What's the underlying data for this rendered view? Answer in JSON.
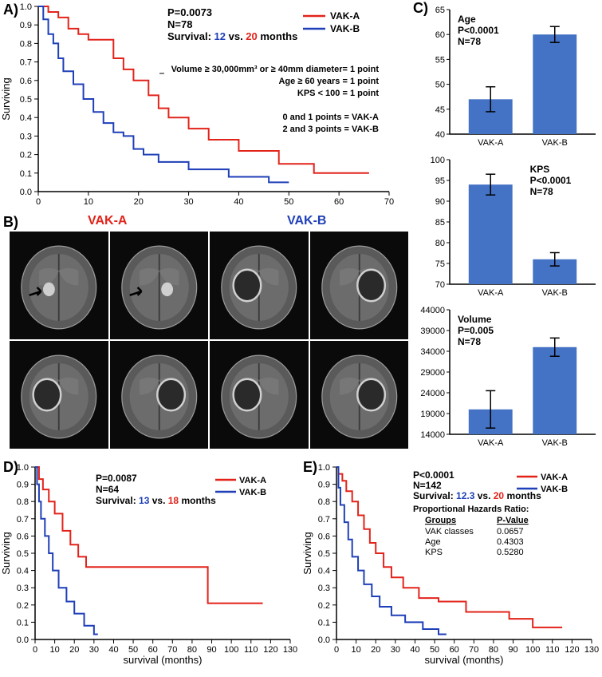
{
  "colors": {
    "vak_a": "#e2231a",
    "vak_b": "#1f3fb8",
    "bar": "#4472c4",
    "black": "#000000",
    "white": "#ffffff",
    "brain_gray": "#7a7a7a"
  },
  "panelA": {
    "label": "A)",
    "x_range": [
      0,
      70
    ],
    "x_ticks": [
      0,
      10,
      20,
      30,
      40,
      50,
      60,
      70
    ],
    "y_range": [
      0,
      1.0
    ],
    "y_ticks": [
      0,
      0.1,
      0.2,
      0.3,
      0.4,
      0.5,
      0.6,
      0.7,
      0.8,
      0.9,
      1.0
    ],
    "y_title": "Surviving",
    "p_text": "P=0.0073",
    "n_text": "N=78",
    "surv_prefix": "Survival: ",
    "surv_b": "12",
    "surv_mid": " vs. ",
    "surv_a": "20",
    "surv_suffix": " months",
    "legend": [
      "VAK-A",
      "VAK-B"
    ],
    "rules": [
      "Volume ≥ 30,000mm³ or ≥ 40mm diameter= 1 point",
      "Age ≥ 60 years = 1 point",
      "KPS < 100 = 1 point",
      "",
      "0 and 1 points = VAK-A",
      "2 and 3 points = VAK-B"
    ],
    "km_a": [
      [
        0,
        1.0
      ],
      [
        2,
        1.0
      ],
      [
        2,
        0.97
      ],
      [
        4,
        0.97
      ],
      [
        4,
        0.94
      ],
      [
        6,
        0.94
      ],
      [
        6,
        0.88
      ],
      [
        8,
        0.88
      ],
      [
        8,
        0.85
      ],
      [
        10,
        0.85
      ],
      [
        10,
        0.82
      ],
      [
        15,
        0.82
      ],
      [
        15,
        0.72
      ],
      [
        17,
        0.72
      ],
      [
        17,
        0.66
      ],
      [
        19,
        0.66
      ],
      [
        19,
        0.6
      ],
      [
        22,
        0.6
      ],
      [
        22,
        0.52
      ],
      [
        24,
        0.52
      ],
      [
        24,
        0.45
      ],
      [
        26,
        0.45
      ],
      [
        26,
        0.4
      ],
      [
        30,
        0.4
      ],
      [
        30,
        0.34
      ],
      [
        34,
        0.34
      ],
      [
        34,
        0.28
      ],
      [
        40,
        0.28
      ],
      [
        40,
        0.22
      ],
      [
        48,
        0.22
      ],
      [
        48,
        0.15
      ],
      [
        55,
        0.15
      ],
      [
        55,
        0.1
      ],
      [
        66,
        0.1
      ]
    ],
    "km_b": [
      [
        0,
        1.0
      ],
      [
        1,
        1.0
      ],
      [
        1,
        0.93
      ],
      [
        2,
        0.93
      ],
      [
        2,
        0.85
      ],
      [
        3,
        0.85
      ],
      [
        3,
        0.8
      ],
      [
        4,
        0.8
      ],
      [
        4,
        0.72
      ],
      [
        5,
        0.72
      ],
      [
        5,
        0.65
      ],
      [
        7,
        0.65
      ],
      [
        7,
        0.58
      ],
      [
        9,
        0.58
      ],
      [
        9,
        0.5
      ],
      [
        11,
        0.5
      ],
      [
        11,
        0.43
      ],
      [
        13,
        0.43
      ],
      [
        13,
        0.37
      ],
      [
        15,
        0.37
      ],
      [
        15,
        0.32
      ],
      [
        17,
        0.32
      ],
      [
        17,
        0.3
      ],
      [
        19,
        0.3
      ],
      [
        19,
        0.23
      ],
      [
        21,
        0.23
      ],
      [
        21,
        0.2
      ],
      [
        24,
        0.2
      ],
      [
        24,
        0.16
      ],
      [
        30,
        0.16
      ],
      [
        30,
        0.12
      ],
      [
        38,
        0.12
      ],
      [
        38,
        0.08
      ],
      [
        46,
        0.08
      ],
      [
        46,
        0.05
      ],
      [
        50,
        0.05
      ]
    ]
  },
  "panelB": {
    "label": "B)",
    "title_a": "VAK-A",
    "title_b": "VAK-B"
  },
  "panelC": {
    "label": "C)",
    "categories": [
      "VAK-A",
      "VAK-B"
    ],
    "charts": [
      {
        "title": "Age",
        "p": "P<0.0001",
        "n": "N=78",
        "ylim": [
          40,
          65
        ],
        "yticks": [
          40,
          45,
          50,
          55,
          60,
          65
        ],
        "values": [
          47,
          60
        ],
        "err": [
          2.5,
          1.6
        ],
        "title_pos": "left"
      },
      {
        "title": "KPS",
        "p": "P<0.0001",
        "n": "N=78",
        "ylim": [
          70,
          100
        ],
        "yticks": [
          70,
          75,
          80,
          85,
          90,
          95,
          100
        ],
        "values": [
          94,
          76
        ],
        "err": [
          2.5,
          1.6
        ],
        "title_pos": "right"
      },
      {
        "title": "Volume",
        "p": "P=0.005",
        "n": "N=78",
        "ylim": [
          14000,
          44000
        ],
        "yticks": [
          14000,
          19000,
          24000,
          29000,
          34000,
          39000,
          44000
        ],
        "values": [
          20000,
          35000
        ],
        "err": [
          4500,
          2200
        ],
        "title_pos": "left"
      }
    ]
  },
  "panelD": {
    "label": "D)",
    "x_range": [
      0,
      130
    ],
    "x_ticks": [
      0,
      10,
      20,
      30,
      40,
      50,
      60,
      70,
      80,
      90,
      100,
      110,
      120,
      130
    ],
    "y_range": [
      0,
      1.0
    ],
    "y_ticks": [
      0,
      0.1,
      0.2,
      0.3,
      0.4,
      0.5,
      0.6,
      0.7,
      0.8,
      0.9,
      1.0
    ],
    "y_title": "Surviving",
    "x_title": "survival (months)",
    "p_text": "P=0.0087",
    "n_text": "N=64",
    "surv_prefix": "Survival: ",
    "surv_b": "13",
    "surv_mid": " vs. ",
    "surv_a": "18",
    "surv_suffix": " months",
    "legend": [
      "VAK-A",
      "VAK-B"
    ],
    "km_a": [
      [
        0,
        1.0
      ],
      [
        2,
        1.0
      ],
      [
        2,
        0.93
      ],
      [
        4,
        0.93
      ],
      [
        4,
        0.87
      ],
      [
        7,
        0.87
      ],
      [
        7,
        0.8
      ],
      [
        10,
        0.8
      ],
      [
        10,
        0.73
      ],
      [
        14,
        0.73
      ],
      [
        14,
        0.63
      ],
      [
        18,
        0.63
      ],
      [
        18,
        0.55
      ],
      [
        22,
        0.55
      ],
      [
        22,
        0.48
      ],
      [
        26,
        0.48
      ],
      [
        26,
        0.42
      ],
      [
        88,
        0.42
      ],
      [
        88,
        0.21
      ],
      [
        116,
        0.21
      ]
    ],
    "km_b": [
      [
        0,
        1.0
      ],
      [
        1,
        1.0
      ],
      [
        1,
        0.9
      ],
      [
        2,
        0.9
      ],
      [
        2,
        0.8
      ],
      [
        3,
        0.8
      ],
      [
        3,
        0.7
      ],
      [
        5,
        0.7
      ],
      [
        5,
        0.6
      ],
      [
        7,
        0.6
      ],
      [
        7,
        0.5
      ],
      [
        9,
        0.5
      ],
      [
        9,
        0.4
      ],
      [
        12,
        0.4
      ],
      [
        12,
        0.3
      ],
      [
        16,
        0.3
      ],
      [
        16,
        0.22
      ],
      [
        20,
        0.22
      ],
      [
        20,
        0.15
      ],
      [
        25,
        0.15
      ],
      [
        25,
        0.08
      ],
      [
        30,
        0.08
      ],
      [
        30,
        0.03
      ],
      [
        32,
        0.03
      ]
    ]
  },
  "panelE": {
    "label": "E)",
    "x_range": [
      0,
      130
    ],
    "x_ticks": [
      0,
      10,
      20,
      30,
      40,
      50,
      60,
      70,
      80,
      90,
      100,
      110,
      120,
      130
    ],
    "y_range": [
      0,
      1.0
    ],
    "y_ticks": [
      0,
      0.1,
      0.2,
      0.3,
      0.4,
      0.5,
      0.6,
      0.7,
      0.8,
      0.9,
      1.0
    ],
    "y_title": "Surviving",
    "x_title": "survival (months)",
    "p_text": "P<0.0001",
    "n_text": "N=142",
    "surv_prefix": "Survival: ",
    "surv_b": "12.3",
    "surv_mid": " vs. ",
    "surv_a": "20",
    "surv_suffix": " months",
    "legend": [
      "VAK-A",
      "VAK-B"
    ],
    "hazard_title": "Proportional Hazards Ratio:",
    "hazard_header": [
      "Groups",
      "P-Value"
    ],
    "hazard_rows": [
      [
        "VAK classes",
        "0.0657"
      ],
      [
        "Age",
        "0.4303"
      ],
      [
        "KPS",
        "0.5280"
      ]
    ],
    "km_a": [
      [
        0,
        1.0
      ],
      [
        1,
        1.0
      ],
      [
        1,
        0.96
      ],
      [
        3,
        0.96
      ],
      [
        3,
        0.92
      ],
      [
        5,
        0.92
      ],
      [
        5,
        0.86
      ],
      [
        8,
        0.86
      ],
      [
        8,
        0.8
      ],
      [
        11,
        0.8
      ],
      [
        11,
        0.72
      ],
      [
        14,
        0.72
      ],
      [
        14,
        0.64
      ],
      [
        17,
        0.64
      ],
      [
        17,
        0.56
      ],
      [
        20,
        0.56
      ],
      [
        20,
        0.5
      ],
      [
        24,
        0.5
      ],
      [
        24,
        0.42
      ],
      [
        28,
        0.42
      ],
      [
        28,
        0.36
      ],
      [
        34,
        0.36
      ],
      [
        34,
        0.3
      ],
      [
        42,
        0.3
      ],
      [
        42,
        0.24
      ],
      [
        52,
        0.24
      ],
      [
        52,
        0.22
      ],
      [
        66,
        0.22
      ],
      [
        66,
        0.16
      ],
      [
        88,
        0.16
      ],
      [
        88,
        0.12
      ],
      [
        100,
        0.12
      ],
      [
        100,
        0.07
      ],
      [
        115,
        0.07
      ]
    ],
    "km_b": [
      [
        0,
        1.0
      ],
      [
        1,
        1.0
      ],
      [
        1,
        0.88
      ],
      [
        2,
        0.88
      ],
      [
        2,
        0.78
      ],
      [
        4,
        0.78
      ],
      [
        4,
        0.68
      ],
      [
        6,
        0.68
      ],
      [
        6,
        0.58
      ],
      [
        8,
        0.58
      ],
      [
        8,
        0.48
      ],
      [
        11,
        0.48
      ],
      [
        11,
        0.4
      ],
      [
        14,
        0.4
      ],
      [
        14,
        0.32
      ],
      [
        18,
        0.32
      ],
      [
        18,
        0.25
      ],
      [
        22,
        0.25
      ],
      [
        22,
        0.19
      ],
      [
        28,
        0.19
      ],
      [
        28,
        0.14
      ],
      [
        35,
        0.14
      ],
      [
        35,
        0.1
      ],
      [
        44,
        0.1
      ],
      [
        44,
        0.06
      ],
      [
        52,
        0.06
      ],
      [
        52,
        0.03
      ],
      [
        56,
        0.03
      ]
    ]
  }
}
